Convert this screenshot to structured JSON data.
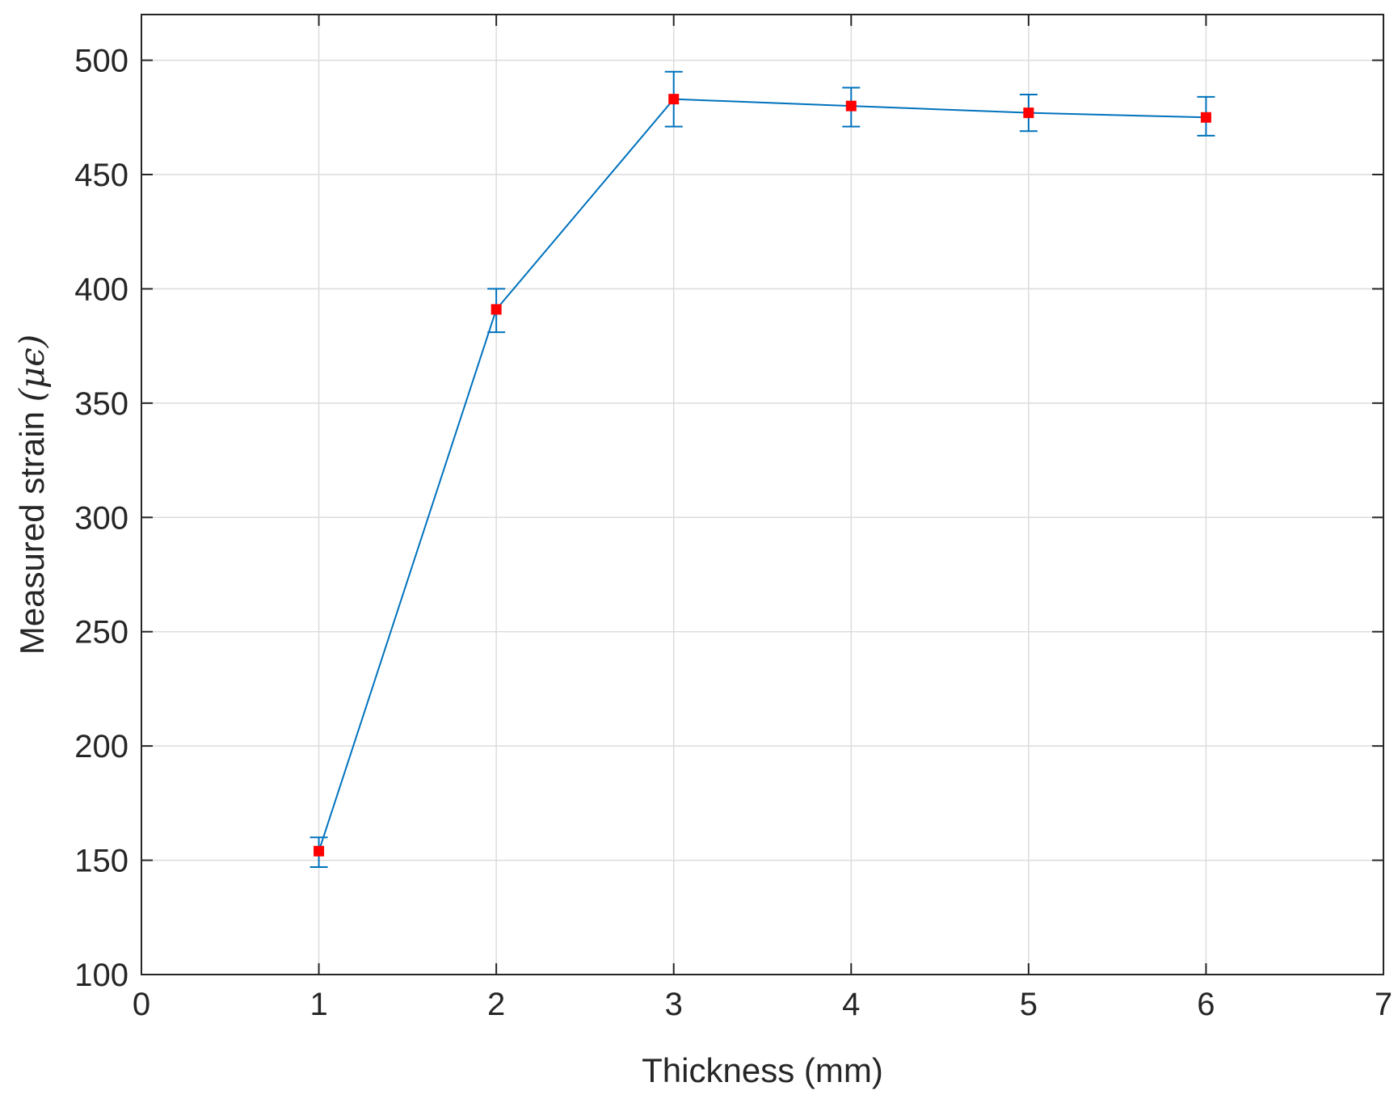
{
  "chart_data": {
    "type": "line",
    "title": "",
    "xlabel": "Thickness  (mm)",
    "ylabel_text": "Measured strain ",
    "ylabel_unit": "(μϵ)",
    "xlim": [
      0,
      7
    ],
    "ylim": [
      100,
      520
    ],
    "xticks": [
      "0",
      "1",
      "2",
      "3",
      "4",
      "5",
      "6",
      "7"
    ],
    "yticks": [
      "100",
      "150",
      "200",
      "250",
      "300",
      "350",
      "400",
      "450",
      "500"
    ],
    "grid": true,
    "series": [
      {
        "x": [
          1,
          2,
          3,
          4,
          5,
          6
        ],
        "y": [
          154,
          391,
          483,
          480,
          477,
          475
        ],
        "err_low": [
          147,
          381,
          471,
          471,
          469,
          467
        ],
        "err_high": [
          160,
          400,
          495,
          488,
          485,
          484
        ],
        "line_color": "#0072BD",
        "marker_color": "#FF0000",
        "marker": "square"
      }
    ]
  }
}
